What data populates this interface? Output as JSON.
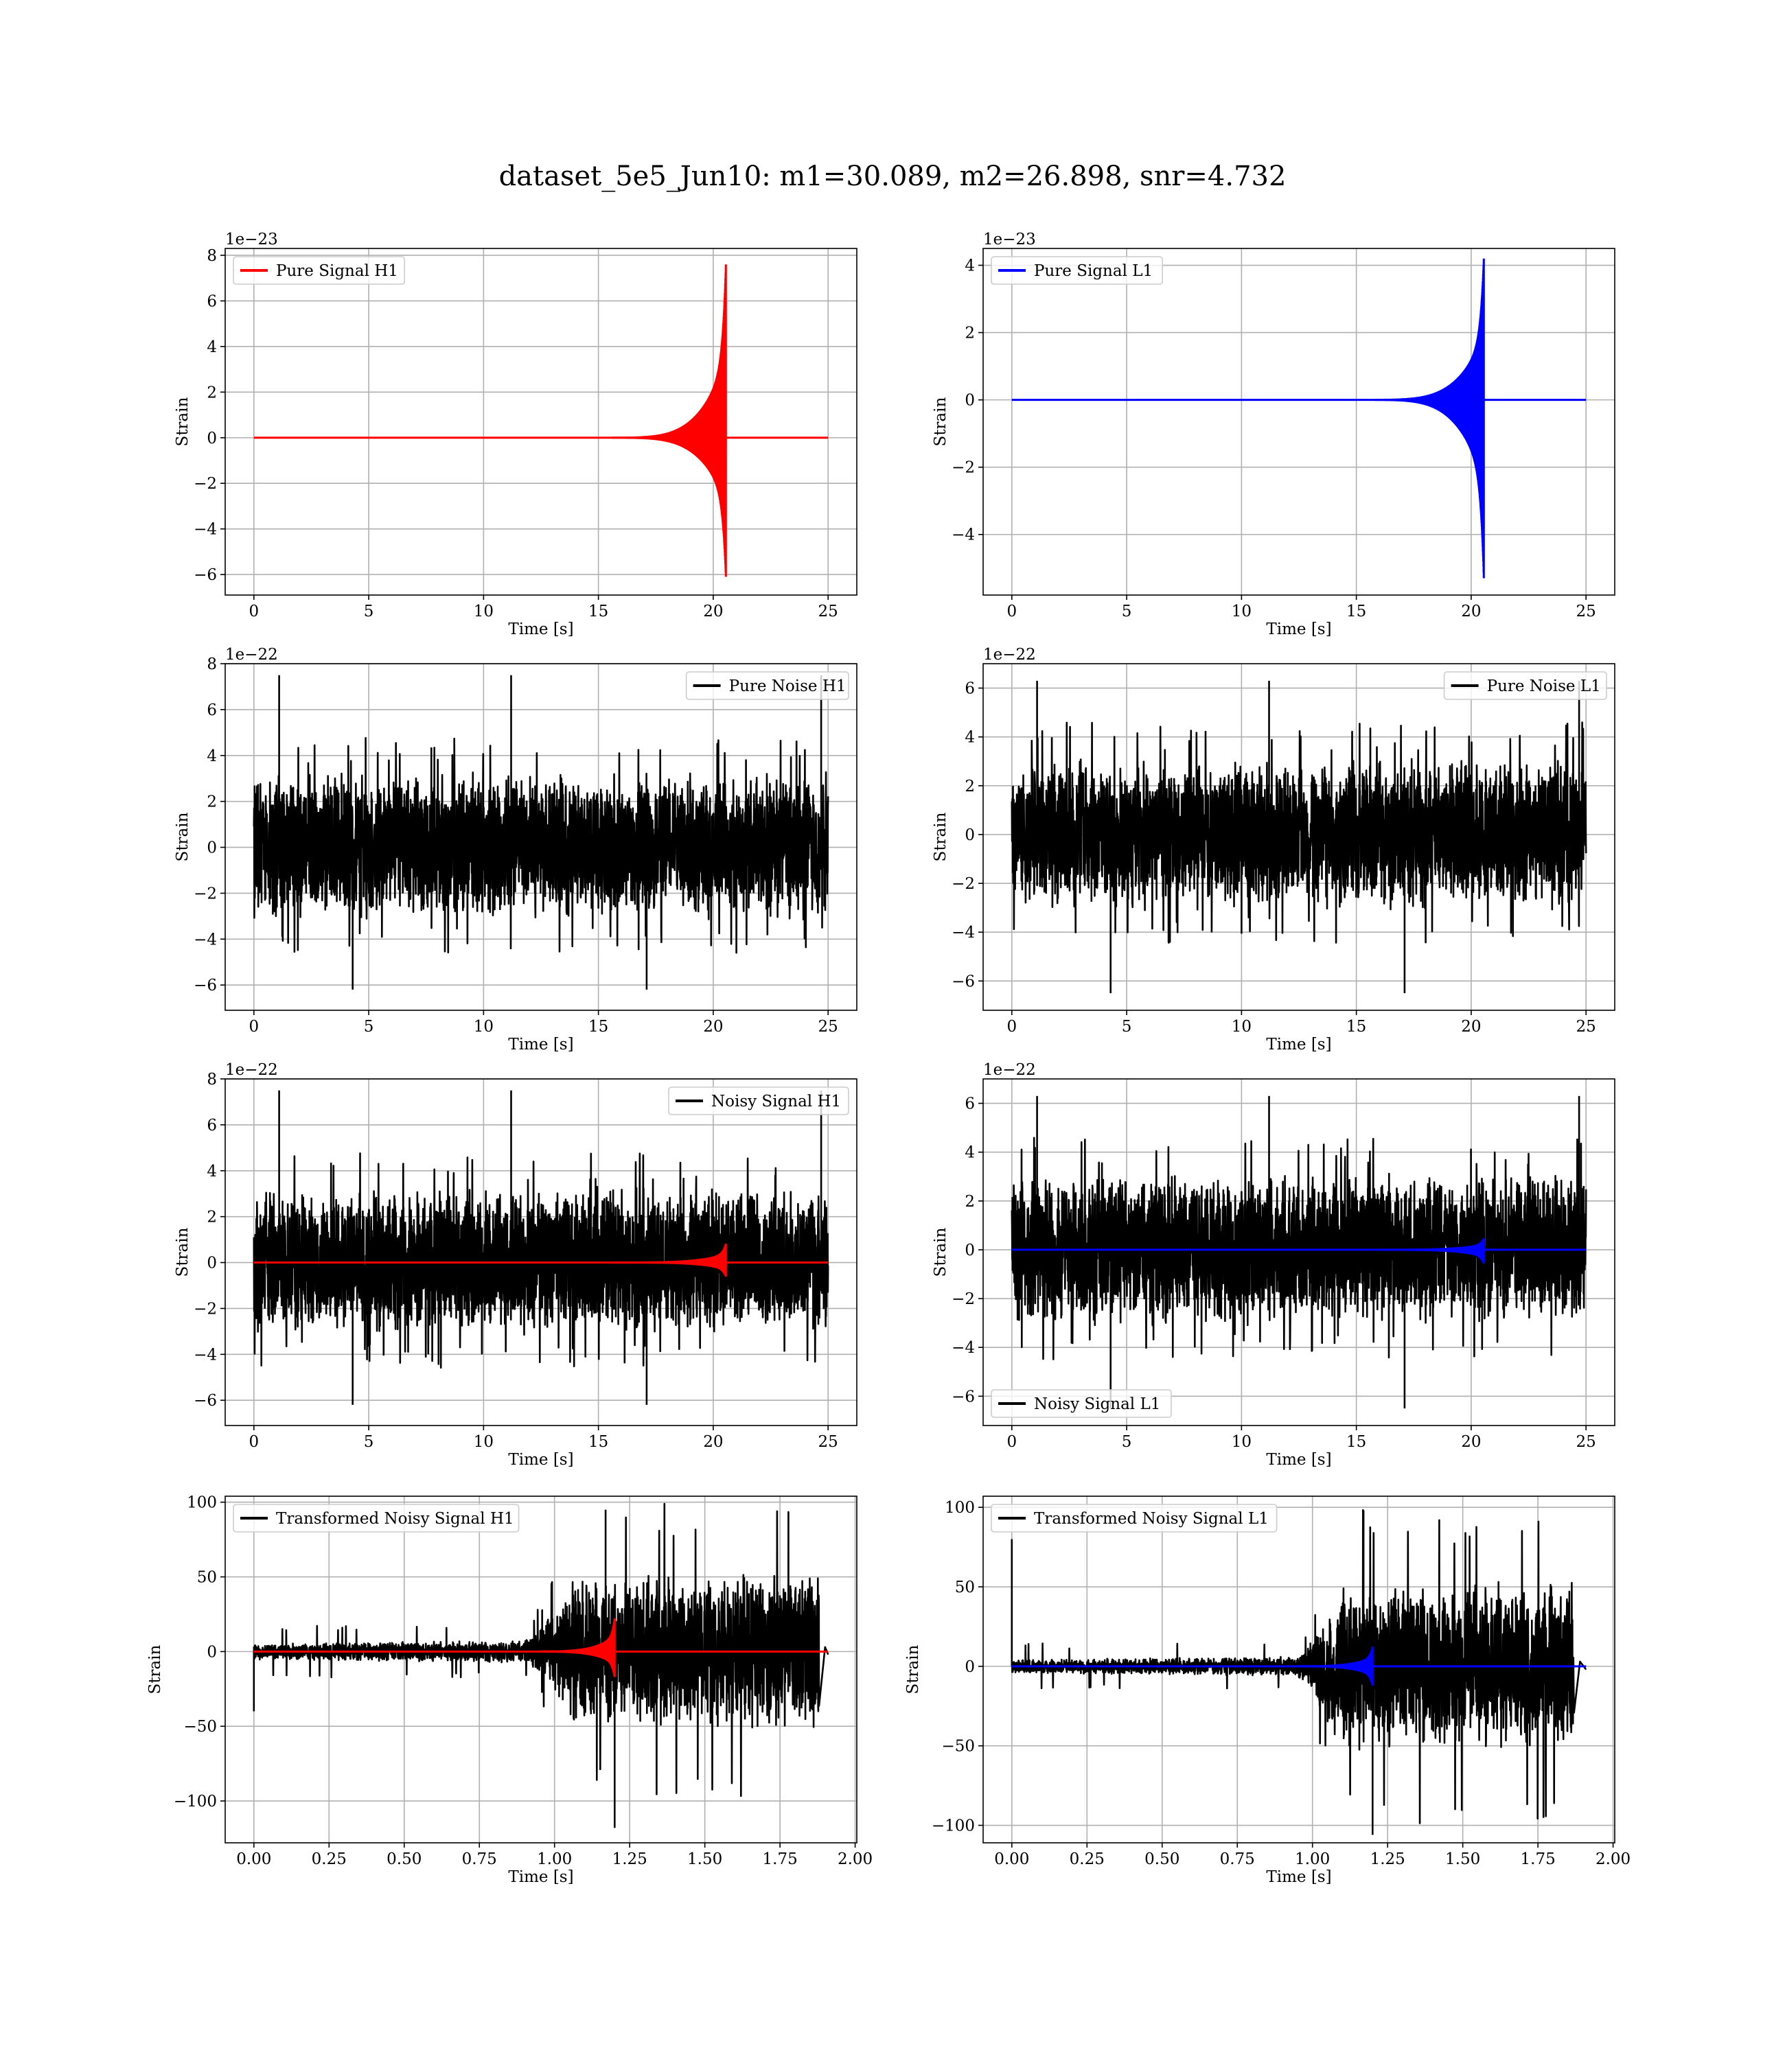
{
  "figure": {
    "title": "dataset_5e5_Jun10: m1=30.089, m2=26.898, snr=4.732"
  },
  "chart_data": [
    {
      "type": "line",
      "legend": [
        "Pure Signal H1"
      ],
      "legend_loc": "upper-left",
      "series": [
        {
          "name": "Pure Signal H1",
          "color": "#ff0000",
          "kind": "chirp",
          "merger": 20.55,
          "upper_peak": 7.6,
          "lower_peak": -6.1
        }
      ],
      "x_range": [
        0,
        25
      ],
      "xlim": [
        -1.25,
        26.25
      ],
      "ylim": [
        -6.9,
        8.3
      ],
      "xticks": [
        0,
        5,
        10,
        15,
        20,
        25
      ],
      "xtick_labels": [
        "0",
        "5",
        "10",
        "15",
        "20",
        "25"
      ],
      "yticks": [
        -6,
        -4,
        -2,
        0,
        2,
        4,
        6,
        8
      ],
      "ytick_labels": [
        "−6",
        "−4",
        "−2",
        "0",
        "2",
        "4",
        "6",
        "8"
      ],
      "offset_text": "1e−23",
      "xlabel": "Time [s]",
      "ylabel": "Strain",
      "grid": true
    },
    {
      "type": "line",
      "legend": [
        "Pure Signal L1"
      ],
      "legend_loc": "upper-left",
      "series": [
        {
          "name": "Pure Signal L1",
          "color": "#0000ff",
          "kind": "chirp",
          "merger": 20.55,
          "upper_peak": 4.2,
          "lower_peak": -5.3
        }
      ],
      "x_range": [
        0,
        25
      ],
      "xlim": [
        -1.25,
        26.25
      ],
      "ylim": [
        -5.8,
        4.5
      ],
      "xticks": [
        0,
        5,
        10,
        15,
        20,
        25
      ],
      "xtick_labels": [
        "0",
        "5",
        "10",
        "15",
        "20",
        "25"
      ],
      "yticks": [
        -4,
        -2,
        0,
        2,
        4
      ],
      "ytick_labels": [
        "−4",
        "−2",
        "0",
        "2",
        "4"
      ],
      "offset_text": "1e−23",
      "xlabel": "Time [s]",
      "ylabel": "Strain",
      "grid": true
    },
    {
      "type": "line",
      "legend": [
        "Pure Noise H1"
      ],
      "legend_loc": "upper-right",
      "series": [
        {
          "name": "Pure Noise H1",
          "color": "#000000",
          "kind": "noise",
          "upper": 4.8,
          "lower": -4.6,
          "spike_max": 7.5,
          "spike_min": -6.2
        }
      ],
      "x_range": [
        0,
        25
      ],
      "xlim": [
        -1.25,
        26.25
      ],
      "ylim": [
        -7.1,
        8.0
      ],
      "xticks": [
        0,
        5,
        10,
        15,
        20,
        25
      ],
      "xtick_labels": [
        "0",
        "5",
        "10",
        "15",
        "20",
        "25"
      ],
      "yticks": [
        -6,
        -4,
        -2,
        0,
        2,
        4,
        6,
        8
      ],
      "ytick_labels": [
        "−6",
        "−4",
        "−2",
        "0",
        "2",
        "4",
        "6",
        "8"
      ],
      "offset_text": "1e−22",
      "xlabel": "Time [s]",
      "ylabel": "Strain",
      "grid": true
    },
    {
      "type": "line",
      "legend": [
        "Pure Noise L1"
      ],
      "legend_loc": "upper-right",
      "series": [
        {
          "name": "Pure Noise L1",
          "color": "#000000",
          "kind": "noise",
          "upper": 4.6,
          "lower": -4.5,
          "spike_max": 6.3,
          "spike_min": -6.5
        }
      ],
      "x_range": [
        0,
        25
      ],
      "xlim": [
        -1.25,
        26.25
      ],
      "ylim": [
        -7.2,
        7.0
      ],
      "xticks": [
        0,
        5,
        10,
        15,
        20,
        25
      ],
      "xtick_labels": [
        "0",
        "5",
        "10",
        "15",
        "20",
        "25"
      ],
      "yticks": [
        -6,
        -4,
        -2,
        0,
        2,
        4,
        6
      ],
      "ytick_labels": [
        "−6",
        "−4",
        "−2",
        "0",
        "2",
        "4",
        "6"
      ],
      "offset_text": "1e−22",
      "xlabel": "Time [s]",
      "ylabel": "Strain",
      "grid": true
    },
    {
      "type": "line",
      "legend": [
        "Noisy Signal H1"
      ],
      "legend_loc": "upper-right",
      "series": [
        {
          "name": "Noisy Signal H1",
          "color": "#000000",
          "kind": "noise",
          "upper": 4.8,
          "lower": -4.6,
          "spike_max": 7.5,
          "spike_min": -6.2
        },
        {
          "color": "#ff0000",
          "kind": "chirp",
          "merger": 20.55,
          "upper_peak": 0.8,
          "lower_peak": -0.6
        }
      ],
      "x_range": [
        0,
        25
      ],
      "xlim": [
        -1.25,
        26.25
      ],
      "ylim": [
        -7.1,
        8.0
      ],
      "xticks": [
        0,
        5,
        10,
        15,
        20,
        25
      ],
      "xtick_labels": [
        "0",
        "5",
        "10",
        "15",
        "20",
        "25"
      ],
      "yticks": [
        -6,
        -4,
        -2,
        0,
        2,
        4,
        6,
        8
      ],
      "ytick_labels": [
        "−6",
        "−4",
        "−2",
        "0",
        "2",
        "4",
        "6",
        "8"
      ],
      "offset_text": "1e−22",
      "xlabel": "Time [s]",
      "ylabel": "Strain",
      "grid": true
    },
    {
      "type": "line",
      "legend": [
        "Noisy Signal L1"
      ],
      "legend_loc": "lower-left",
      "series": [
        {
          "name": "Noisy Signal L1",
          "color": "#000000",
          "kind": "noise",
          "upper": 4.6,
          "lower": -4.5,
          "spike_max": 6.3,
          "spike_min": -6.5
        },
        {
          "color": "#0000ff",
          "kind": "chirp",
          "merger": 20.55,
          "upper_peak": 0.45,
          "lower_peak": -0.55
        }
      ],
      "x_range": [
        0,
        25
      ],
      "xlim": [
        -1.25,
        26.25
      ],
      "ylim": [
        -7.2,
        7.0
      ],
      "xticks": [
        0,
        5,
        10,
        15,
        20,
        25
      ],
      "xtick_labels": [
        "0",
        "5",
        "10",
        "15",
        "20",
        "25"
      ],
      "yticks": [
        -6,
        -4,
        -2,
        0,
        2,
        4,
        6
      ],
      "ytick_labels": [
        "−6",
        "−4",
        "−2",
        "0",
        "2",
        "4",
        "6"
      ],
      "offset_text": "1e−22",
      "xlabel": "Time [s]",
      "ylabel": "Strain",
      "grid": true
    },
    {
      "type": "line",
      "legend": [
        "Transformed Noisy Signal H1"
      ],
      "legend_loc": "upper-left",
      "series": [
        {
          "name": "Transformed Noisy Signal H1",
          "color": "#000000",
          "kind": "whitened",
          "env_low": 10,
          "env_high": 55,
          "rise_start": 0.9,
          "rise_end": 1.1,
          "end": 1.88,
          "spike_max": 95,
          "spike_min": -118,
          "start_spike": -40
        },
        {
          "color": "#ff0000",
          "kind": "chirp",
          "merger": 1.2,
          "upper_peak": 22,
          "lower_peak": -17
        }
      ],
      "x_range": [
        0,
        1.91
      ],
      "xlim": [
        -0.0955,
        2.0055
      ],
      "ylim": [
        -128,
        104
      ],
      "xticks": [
        0,
        0.25,
        0.5,
        0.75,
        1.0,
        1.25,
        1.5,
        1.75,
        2.0
      ],
      "xtick_labels": [
        "0.00",
        "0.25",
        "0.50",
        "0.75",
        "1.00",
        "1.25",
        "1.50",
        "1.75",
        "2.00"
      ],
      "yticks": [
        -100,
        -50,
        0,
        50,
        100
      ],
      "ytick_labels": [
        "−100",
        "−50",
        "0",
        "50",
        "100"
      ],
      "xlabel": "Time [s]",
      "ylabel": "Strain",
      "grid": true
    },
    {
      "type": "line",
      "legend": [
        "Transformed Noisy Signal L1"
      ],
      "legend_loc": "upper-left",
      "series": [
        {
          "name": "Transformed Noisy Signal L1",
          "color": "#000000",
          "kind": "whitened",
          "env_low": 8,
          "env_high": 55,
          "rise_start": 0.95,
          "rise_end": 1.12,
          "end": 1.87,
          "spike_max": 98,
          "spike_min": -106,
          "start_spike": 80
        },
        {
          "color": "#0000ff",
          "kind": "chirp",
          "merger": 1.2,
          "upper_peak": 12,
          "lower_peak": -12
        }
      ],
      "x_range": [
        0,
        1.91
      ],
      "xlim": [
        -0.0955,
        2.0055
      ],
      "ylim": [
        -111,
        107
      ],
      "xticks": [
        0,
        0.25,
        0.5,
        0.75,
        1.0,
        1.25,
        1.5,
        1.75,
        2.0
      ],
      "xtick_labels": [
        "0.00",
        "0.25",
        "0.50",
        "0.75",
        "1.00",
        "1.25",
        "1.50",
        "1.75",
        "2.00"
      ],
      "yticks": [
        -100,
        -50,
        0,
        50,
        100
      ],
      "ytick_labels": [
        "−100",
        "−50",
        "0",
        "50",
        "100"
      ],
      "xlabel": "Time [s]",
      "ylabel": "Strain",
      "grid": true
    }
  ]
}
